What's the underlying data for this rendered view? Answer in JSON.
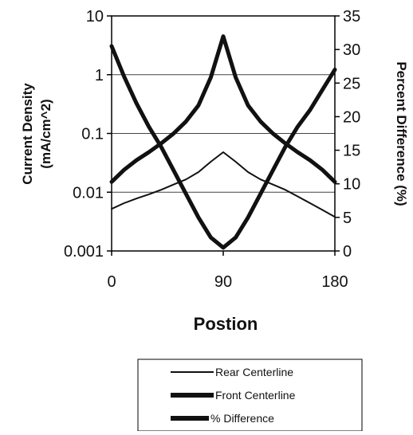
{
  "chart_data": {
    "type": "line",
    "x": [
      0,
      10,
      20,
      30,
      40,
      50,
      60,
      70,
      80,
      90,
      100,
      110,
      120,
      130,
      140,
      150,
      160,
      170,
      180
    ],
    "xlabel": "Postion",
    "x_ticks": [
      "0",
      "90",
      "180"
    ],
    "xlim": [
      0,
      180
    ],
    "y_left": {
      "label_line1": "Current Density",
      "label_line2": "(mA/cm^2)",
      "scale": "log",
      "lim": [
        0.001,
        10
      ],
      "ticks": [
        "10",
        "1",
        "0.1",
        "0.01",
        "0.001"
      ]
    },
    "y_right": {
      "label": "Percent Difference (%)",
      "scale": "linear",
      "lim": [
        0,
        35
      ],
      "ticks": [
        "35",
        "30",
        "25",
        "20",
        "15",
        "10",
        "5",
        "0"
      ]
    },
    "grid": true,
    "legend_position": "bottom-right",
    "series": [
      {
        "name": "Rear Centerline",
        "axis": "left",
        "values": [
          0.0052,
          0.0065,
          0.0078,
          0.0092,
          0.011,
          0.0135,
          0.0165,
          0.022,
          0.033,
          0.048,
          0.033,
          0.022,
          0.0165,
          0.0135,
          0.011,
          0.0085,
          0.0065,
          0.005,
          0.0038
        ]
      },
      {
        "name": "Front Centerline",
        "axis": "left",
        "values": [
          0.015,
          0.024,
          0.035,
          0.048,
          0.068,
          0.1,
          0.16,
          0.3,
          0.9,
          4.5,
          0.9,
          0.3,
          0.16,
          0.1,
          0.068,
          0.048,
          0.035,
          0.024,
          0.015
        ]
      },
      {
        "name": "% Difference",
        "axis": "right",
        "values": [
          30.5,
          26,
          22,
          18.5,
          15.5,
          12,
          8.5,
          5,
          2,
          0.5,
          2,
          5,
          8.5,
          12,
          15.5,
          18.5,
          21,
          24,
          27
        ]
      }
    ]
  }
}
